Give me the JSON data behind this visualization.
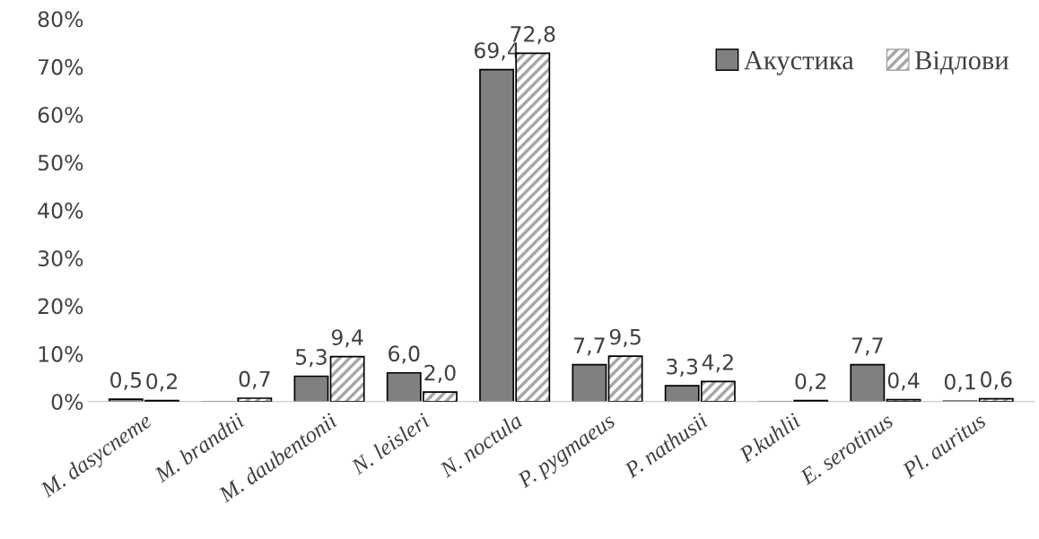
{
  "chart_data": {
    "type": "bar",
    "categories": [
      "M. dasycneme",
      "M. brandtii",
      "M. daubentonii",
      "N. leisleri",
      "N. noctula",
      "P. pygmaeus",
      "P. nathusii",
      "P.kuhlii",
      "E. serotinus",
      "Pl. auritus"
    ],
    "series": [
      {
        "name": "Акустика",
        "color": "#808080",
        "values": [
          0.5,
          null,
          5.3,
          6.0,
          69.4,
          7.7,
          3.3,
          null,
          7.7,
          0.1
        ],
        "value_labels": [
          "0,5",
          null,
          "5,3",
          "6,0",
          "69,4",
          "7,7",
          "3,3",
          null,
          "7,7",
          "0,1"
        ]
      },
      {
        "name": "Відлови",
        "color": "#a6a6a6",
        "values": [
          0.2,
          0.7,
          9.4,
          2.0,
          72.8,
          9.5,
          4.2,
          0.2,
          0.4,
          0.6
        ],
        "value_labels": [
          "0,2",
          "0,7",
          "9,4",
          "2,0",
          "72,8",
          "9,5",
          "4,2",
          "0,2",
          "0,4",
          "0,6"
        ]
      }
    ],
    "ylim": [
      0,
      80
    ],
    "yticks": [
      {
        "value": 0,
        "label": "0%"
      },
      {
        "value": 10,
        "label": "10%"
      },
      {
        "value": 20,
        "label": "20%"
      },
      {
        "value": 30,
        "label": "30%"
      },
      {
        "value": 40,
        "label": "40%"
      },
      {
        "value": 50,
        "label": "50%"
      },
      {
        "value": 60,
        "label": "60%"
      },
      {
        "value": 70,
        "label": "70%"
      },
      {
        "value": 80,
        "label": "80%"
      }
    ],
    "grid": false,
    "legend": "top right"
  }
}
